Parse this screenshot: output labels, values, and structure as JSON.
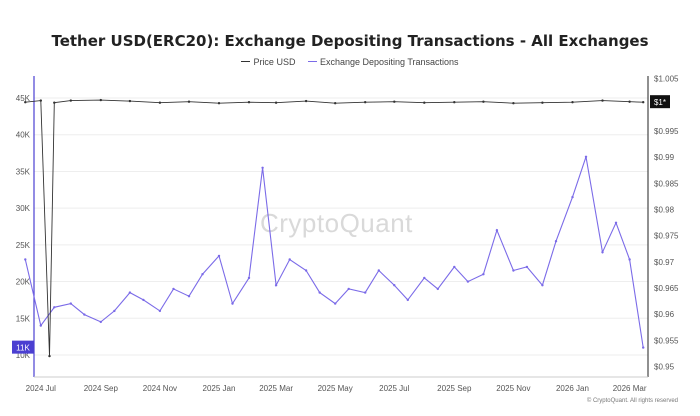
{
  "chart_data": {
    "type": "line",
    "title": "Tether USD(ERC20): Exchange Depositing Transactions - All Exchanges",
    "legend": [
      "Price USD",
      "Exchange Depositing Transactions"
    ],
    "legend_placement": "top-center",
    "watermark": "CryptoQuant",
    "copyright": "© CryptoQuant. All rights reserved",
    "colors": {
      "price": "#333333",
      "transactions": "#7b6be8",
      "left_badge": "#4b3fd1",
      "right_badge": "#111111"
    },
    "grid": true,
    "x_ticks": [
      "2024 Jul",
      "2024 Sep",
      "2024 Nov",
      "2025 Jan",
      "2025 Mar",
      "2025 May",
      "2025 Jul",
      "2025 Sep",
      "2025 Nov",
      "2026 Jan",
      "2026 Mar"
    ],
    "y_left_ticks": [
      "10K",
      "15K",
      "20K",
      "25K",
      "30K",
      "35K",
      "40K",
      "45K"
    ],
    "y_left_range": [
      7000,
      48000
    ],
    "y_right_ticks": [
      "$0.95",
      "$0.955",
      "$0.96",
      "$0.965",
      "$0.97",
      "$0.975",
      "$0.98",
      "$0.985",
      "$0.99",
      "$0.995",
      "$1.005"
    ],
    "y_right_range": [
      0.948,
      1.0055
    ],
    "last_values": {
      "transactions_label": "11K",
      "price_label": "$1*"
    },
    "series": [
      {
        "name": "Exchange Depositing Transactions",
        "axis": "left",
        "x": [
          "2024-06-15",
          "2024-07-01",
          "2024-07-15",
          "2024-08-01",
          "2024-08-15",
          "2024-09-01",
          "2024-09-15",
          "2024-10-01",
          "2024-10-15",
          "2024-11-01",
          "2024-11-15",
          "2024-12-01",
          "2024-12-15",
          "2025-01-01",
          "2025-01-15",
          "2025-02-01",
          "2025-02-15",
          "2025-03-01",
          "2025-03-15",
          "2025-04-01",
          "2025-04-15",
          "2025-05-01",
          "2025-05-15",
          "2025-06-01",
          "2025-06-15",
          "2025-07-01",
          "2025-07-15",
          "2025-08-01",
          "2025-08-15",
          "2025-09-01",
          "2025-09-15",
          "2025-10-01",
          "2025-10-15",
          "2025-11-01",
          "2025-11-15",
          "2025-12-01",
          "2025-12-15",
          "2026-01-01",
          "2026-01-15",
          "2026-02-01",
          "2026-02-15",
          "2026-03-01",
          "2026-03-15"
        ],
        "values": [
          23000,
          14000,
          16500,
          17000,
          15500,
          14500,
          16000,
          18500,
          17500,
          16000,
          19000,
          18000,
          21000,
          23500,
          17000,
          20500,
          35500,
          19500,
          23000,
          21500,
          18500,
          17000,
          19000,
          18500,
          21500,
          19500,
          17500,
          20500,
          19000,
          22000,
          20000,
          21000,
          27000,
          21500,
          22000,
          19500,
          25500,
          31500,
          37000,
          24000,
          28000,
          23000,
          11000
        ]
      },
      {
        "name": "Price USD",
        "axis": "right",
        "x": [
          "2024-06-15",
          "2024-07-01",
          "2024-07-10",
          "2024-07-15",
          "2024-08-01",
          "2024-09-01",
          "2024-10-01",
          "2024-11-01",
          "2024-12-01",
          "2025-01-01",
          "2025-02-01",
          "2025-03-01",
          "2025-04-01",
          "2025-05-01",
          "2025-06-01",
          "2025-07-01",
          "2025-08-01",
          "2025-09-01",
          "2025-10-01",
          "2025-11-01",
          "2025-12-01",
          "2026-01-01",
          "2026-02-01",
          "2026-03-01",
          "2026-03-15"
        ],
        "values": [
          1.0005,
          1.0008,
          0.952,
          1.0004,
          1.0008,
          1.0009,
          1.0007,
          1.0004,
          1.0006,
          1.0003,
          1.0005,
          1.0004,
          1.0007,
          1.0003,
          1.0005,
          1.0006,
          1.0004,
          1.0005,
          1.0006,
          1.0003,
          1.0004,
          1.0005,
          1.0008,
          1.0006,
          1.0005
        ]
      }
    ]
  }
}
